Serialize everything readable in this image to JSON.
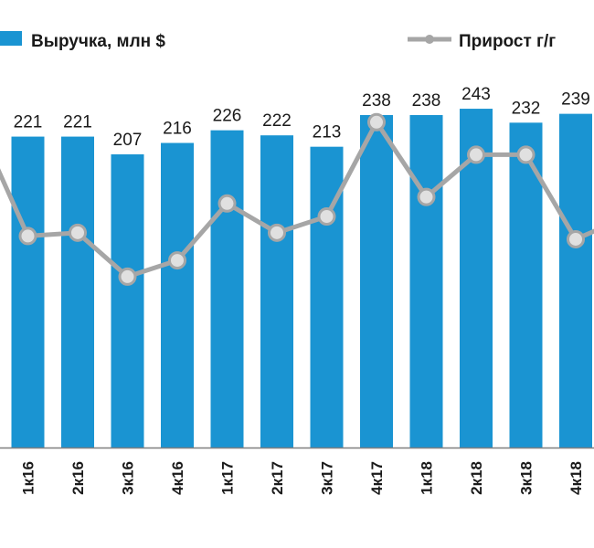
{
  "chart_data": {
    "type": "bar",
    "categories": [
      "1к16",
      "2к16",
      "3к16",
      "4к16",
      "1к17",
      "2к17",
      "3к17",
      "4к17",
      "1к18",
      "2к18",
      "3к18",
      "4к18"
    ],
    "series": [
      {
        "name": "Выручка, млн $",
        "type": "bar",
        "values": [
          221,
          221,
          207,
          216,
          226,
          222,
          213,
          238,
          238,
          243,
          232,
          239
        ]
      },
      {
        "name": "Прирост г/г",
        "type": "line",
        "values": [
          2.0,
          2.2,
          -0.5,
          0.5,
          4.0,
          2.2,
          3.2,
          9.0,
          4.4,
          7.0,
          7.0,
          1.8
        ]
      }
    ],
    "legend_placement": "top",
    "grid": false,
    "colors": {
      "bar": "#1a94d2",
      "line": "#a6a6a6",
      "marker_fill": "#e0e0e0"
    }
  }
}
